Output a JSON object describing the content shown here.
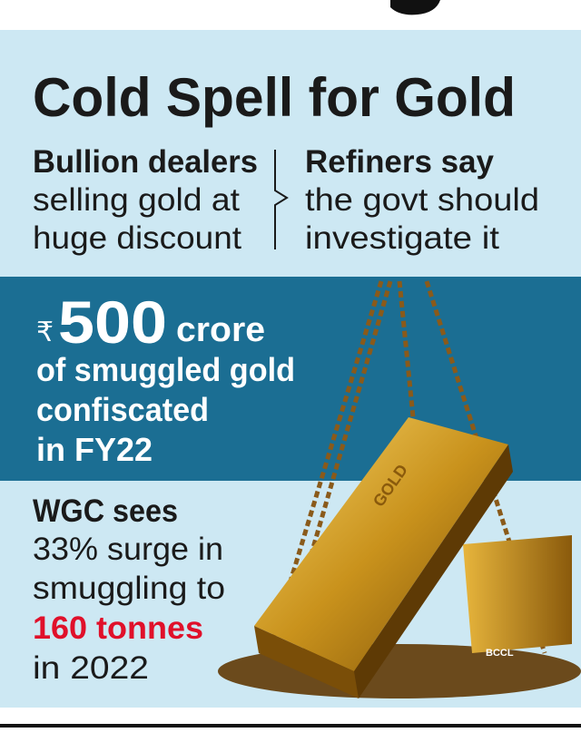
{
  "header": {
    "title": "Cold Spell for Gold"
  },
  "left": {
    "heading": "Bullion dealers",
    "lines": [
      "selling gold at",
      "huge discount"
    ]
  },
  "right": {
    "heading": "Refiners say",
    "lines": [
      "the govt should",
      "investigate it"
    ]
  },
  "band": {
    "currency": "₹",
    "amount": "500",
    "unit": "crore",
    "lines": [
      "of smuggled gold",
      "confiscated",
      "in FY22"
    ]
  },
  "footer": {
    "heading": "WGC sees",
    "lines": [
      "33% surge in",
      "smuggling to"
    ],
    "highlight": "160 tonnes",
    "tail": "in 2022"
  },
  "credit": "BCCL"
}
